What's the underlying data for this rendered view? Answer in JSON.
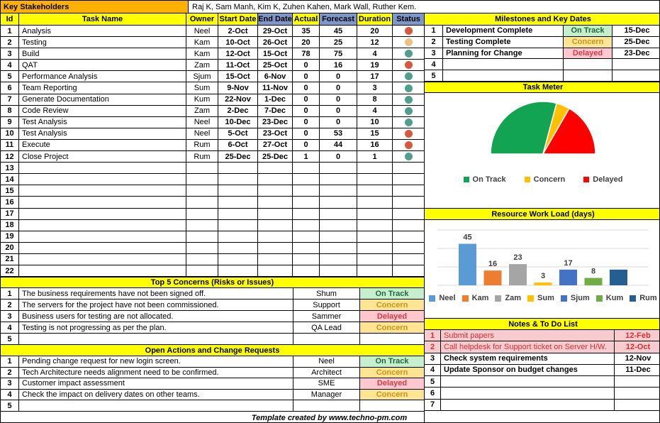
{
  "stakeholders": {
    "label": "Key Stakeholders",
    "names": "Raj K, Sam Manh, Kim K, Zuhen Kahen, Mark Wall, Ruther Kem."
  },
  "colors": {
    "yellow_header": "#FFFF00",
    "orange_header": "#FFB101",
    "blue_header": "#7E96C8",
    "dot_on_track": "#529E8C",
    "dot_concern": "#EAC282",
    "dot_delayed": "#D6593F",
    "badge_on_track_bg": "#C6EFCE",
    "badge_on_track_text": "#1E6A3C",
    "badge_concern_bg": "#FFE493",
    "badge_concern_text": "#C9941A",
    "badge_delayed_bg": "#FFC7CE",
    "badge_delayed_text": "#D23A45",
    "note_flag_bg": "#F8CBCE",
    "note_flag_text": "#D93030"
  },
  "status_labels": {
    "on_track": "On Track",
    "concern": "Concern",
    "delayed": "Delayed"
  },
  "task_table": {
    "headers": {
      "id": "Id",
      "task": "Task Name",
      "owner": "Owner",
      "start": "Start Date",
      "end": "End Date",
      "actual": "Actual",
      "forecast": "Forecast",
      "duration": "Duration",
      "status": "Status"
    },
    "blue_columns": [
      "end",
      "forecast",
      "status"
    ],
    "rows": [
      {
        "id": 1,
        "task": "Analysis",
        "owner": "Neel",
        "start": "2-Oct",
        "end": "29-Oct",
        "actual": "35",
        "forecast": "45",
        "duration": "20",
        "status": "delayed"
      },
      {
        "id": 2,
        "task": "Testing",
        "owner": "Kam",
        "start": "10-Oct",
        "end": "26-Oct",
        "actual": "20",
        "forecast": "25",
        "duration": "12",
        "status": "concern"
      },
      {
        "id": 3,
        "task": "Build",
        "owner": "Kam",
        "start": "12-Oct",
        "end": "15-Oct",
        "actual": "78",
        "forecast": "75",
        "duration": "4",
        "status": "on_track"
      },
      {
        "id": 4,
        "task": "QAT",
        "owner": "Zam",
        "start": "11-Oct",
        "end": "25-Oct",
        "actual": "0",
        "forecast": "16",
        "duration": "19",
        "status": "delayed"
      },
      {
        "id": 5,
        "task": "Performance Analysis",
        "owner": "Sjum",
        "start": "15-Oct",
        "end": "6-Nov",
        "actual": "0",
        "forecast": "0",
        "duration": "17",
        "status": "on_track"
      },
      {
        "id": 6,
        "task": "Team Reporting",
        "owner": "Sum",
        "start": "9-Nov",
        "end": "11-Nov",
        "actual": "0",
        "forecast": "0",
        "duration": "3",
        "status": "on_track"
      },
      {
        "id": 7,
        "task": "Generate Documentation",
        "owner": "Kum",
        "start": "22-Nov",
        "end": "1-Dec",
        "actual": "0",
        "forecast": "0",
        "duration": "8",
        "status": "on_track"
      },
      {
        "id": 8,
        "task": "Code Review",
        "owner": "Zam",
        "start": "2-Dec",
        "end": "7-Dec",
        "actual": "0",
        "forecast": "0",
        "duration": "4",
        "status": "on_track"
      },
      {
        "id": 9,
        "task": "Test Analysis",
        "owner": "Neel",
        "start": "10-Dec",
        "end": "23-Dec",
        "actual": "0",
        "forecast": "0",
        "duration": "10",
        "status": "on_track"
      },
      {
        "id": 10,
        "task": "Test Analysis",
        "owner": "Neel",
        "start": "5-Oct",
        "end": "23-Oct",
        "actual": "0",
        "forecast": "53",
        "duration": "15",
        "status": "delayed"
      },
      {
        "id": 11,
        "task": "Execute",
        "owner": "Rum",
        "start": "6-Oct",
        "end": "27-Oct",
        "actual": "0",
        "forecast": "44",
        "duration": "16",
        "status": "delayed"
      },
      {
        "id": 12,
        "task": "Close Project",
        "owner": "Rum",
        "start": "25-Dec",
        "end": "25-Dec",
        "actual": "1",
        "forecast": "0",
        "duration": "1",
        "status": "on_track"
      }
    ],
    "empty_ids": [
      13,
      14,
      15,
      16,
      17,
      18,
      19,
      20,
      21,
      22
    ]
  },
  "concerns": {
    "title": "Top 5 Concerns (Risks or Issues)",
    "rows": [
      {
        "id": 1,
        "text": "The business requirements have not been signed off.",
        "owner": "Shum",
        "status": "on_track"
      },
      {
        "id": 2,
        "text": "The servers for the project have not been commissioned.",
        "owner": "Support",
        "status": "concern"
      },
      {
        "id": 3,
        "text": "Business users for testing are not allocated.",
        "owner": "Sammer",
        "status": "delayed"
      },
      {
        "id": 4,
        "text": "Testing is not progressing as per the plan.",
        "owner": "QA Lead",
        "status": "concern"
      }
    ],
    "empty_ids": [
      5
    ]
  },
  "actions": {
    "title": "Open Actions and Change Requests",
    "rows": [
      {
        "id": 1,
        "text": "Pending change request for new login screen.",
        "owner": "Neel",
        "status": "on_track"
      },
      {
        "id": 2,
        "text": "Tech Architecture needs alignment need to be confirmed.",
        "owner": "Architect",
        "status": "concern"
      },
      {
        "id": 3,
        "text": "Customer impact assessment",
        "owner": "SME",
        "status": "delayed"
      },
      {
        "id": 4,
        "text": "Check the impact on delivery dates on other teams.",
        "owner": "Manager",
        "status": "concern"
      }
    ],
    "empty_ids": [
      5
    ]
  },
  "milestones": {
    "title": "Milestones and Key Dates",
    "rows": [
      {
        "id": 1,
        "name": "Development Complete",
        "status": "on_track",
        "date": "15-Dec"
      },
      {
        "id": 2,
        "name": "Testing Complete",
        "status": "concern",
        "date": "25-Dec"
      },
      {
        "id": 3,
        "name": "Planning for Change",
        "status": "delayed",
        "date": "23-Dec"
      }
    ],
    "empty_ids": [
      4,
      5
    ]
  },
  "task_meter": {
    "title": "Task Meter"
  },
  "workload": {
    "title": "Resource Work Load (days)"
  },
  "notes": {
    "title": "Notes & To Do List",
    "rows": [
      {
        "id": 1,
        "text": "Submit papers",
        "date": "12-Feb",
        "flagged": true
      },
      {
        "id": 2,
        "text": "Call helpdesk for Support ticket on Server H/W.",
        "date": "12-Oct",
        "flagged": true
      },
      {
        "id": 3,
        "text": "Check system requirements",
        "date": "12-Nov",
        "flagged": false
      },
      {
        "id": 4,
        "text": "Update Sponsor on budget changes",
        "date": "11-Dec",
        "flagged": false
      }
    ],
    "empty_ids": [
      5,
      6,
      7
    ]
  },
  "footer": "Template created by www.techno-pm.com",
  "chart_data": [
    {
      "type": "pie",
      "variant": "half-pie",
      "title": "Task Meter",
      "labels": [
        "On Track",
        "Concern",
        "Delayed"
      ],
      "values": [
        7,
        1,
        4
      ],
      "colors": [
        "#12A452",
        "#FFC000",
        "#FF0000"
      ],
      "legend_position": "bottom"
    },
    {
      "type": "bar",
      "title": "Resource Work Load (days)",
      "categories": [
        "Neel",
        "Kam",
        "Zam",
        "Sum",
        "Sjum",
        "Kum",
        "Rum"
      ],
      "values": [
        45,
        16,
        23,
        3,
        17,
        8,
        17
      ],
      "data_labels": [
        "45",
        "16",
        "23",
        "3",
        "17",
        "8",
        ""
      ],
      "colors": [
        "#5B9BD5",
        "#ED7D31",
        "#A5A5A5",
        "#FFC000",
        "#4472C4",
        "#70AD47",
        "#255E91"
      ],
      "ylim": [
        0,
        60
      ],
      "gridline_values": [
        0,
        20,
        40,
        60
      ],
      "grid": true,
      "legend_position": "bottom"
    }
  ]
}
